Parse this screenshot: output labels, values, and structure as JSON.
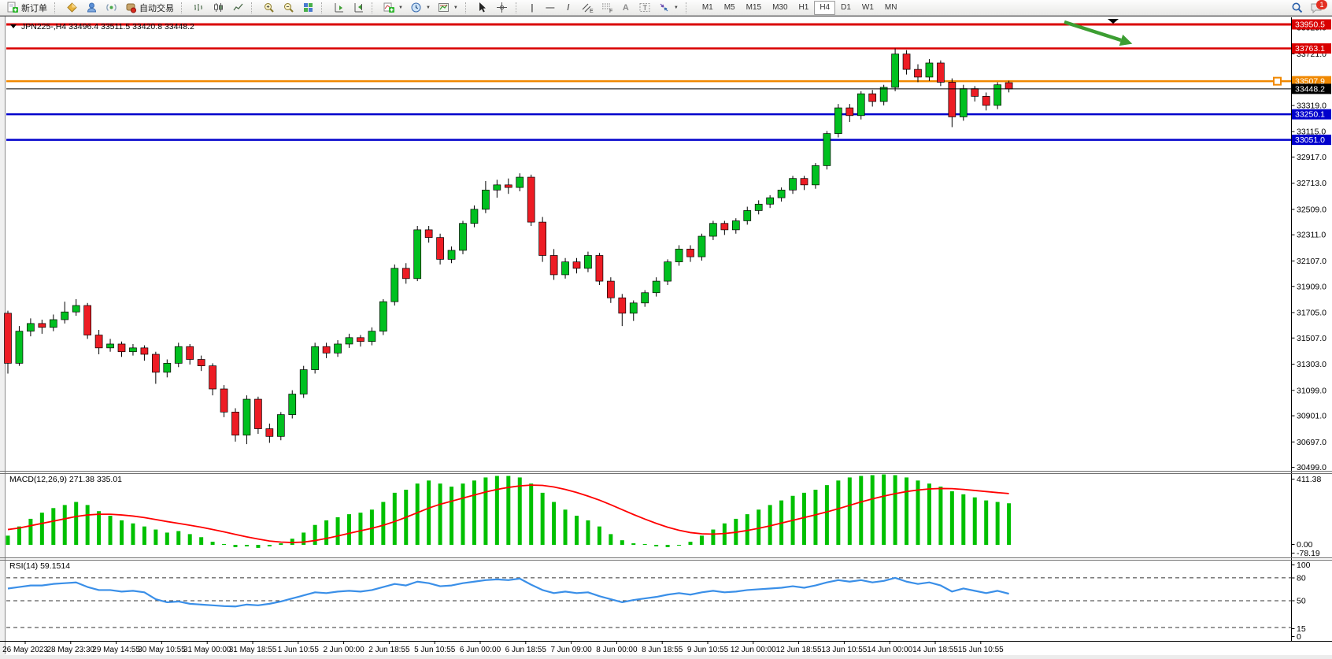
{
  "toolbar": {
    "new_order_label": "新订单",
    "autotrading_label": "自动交易",
    "timeframes": [
      "M1",
      "M5",
      "M15",
      "M30",
      "H1",
      "H4",
      "D1",
      "W1",
      "MN"
    ],
    "active_timeframe": "H4",
    "notification_count": "1",
    "icons": {
      "new-order-icon": "document-green-plus",
      "market-watch-icon": "gold-diamond",
      "data-window-icon": "blue-person",
      "navigator-icon": "signal-dot",
      "autotrading-icon": "chip-red-dot",
      "bar-chart-icon": "ohlc-bars",
      "candlestick-chart-icon": "candles",
      "line-chart-icon": "polyline",
      "zoom-in-icon": "magnifier-plus",
      "zoom-out-icon": "magnifier-minus",
      "tile-windows-icon": "colored-grid",
      "autoscroll-icon": "chart-arrow-right",
      "chart-shift-icon": "chart-shift-marker",
      "indicators-icon": "green-plus",
      "periods-icon": "clock",
      "templates-icon": "mini-chart",
      "cursor-icon": "pointer-arrow",
      "crosshair-icon": "crosshair",
      "vertical-line-icon": "vertical-bar",
      "horizontal-line-icon": "horizontal-bar",
      "trendline-icon": "diagonal-line",
      "equidistant-channel-icon": "double-slash-E",
      "fibonacci-icon": "dotted-grid-F",
      "text-icon": "letter-A",
      "text-label-icon": "boxed-T",
      "arrows-icon": "diagonal-arrows",
      "search-icon": "magnifier",
      "chat-icon": "speech-bubble"
    }
  },
  "chart": {
    "title": "JPN225-,H4",
    "ohlc_text": "33496.4 33511.5 33420.8 33448.2"
  },
  "chart_data": [
    {
      "type": "candlestick",
      "symbol": "JPN225-",
      "period": "H4",
      "last_bar": {
        "open": 33496.4,
        "high": 33511.5,
        "low": 33420.8,
        "close": 33448.2
      },
      "up_color": "#00c020",
      "down_color": "#ed1c24",
      "y_ticks": [
        33925.0,
        33721.0,
        33319.0,
        33115.0,
        32917.0,
        32713.0,
        32509.0,
        32311.0,
        32107.0,
        31909.0,
        31705.0,
        31507.0,
        31303.0,
        31099.0,
        30901.0,
        30697.0,
        30499.0
      ],
      "levels": [
        {
          "label": "33950.5",
          "price": 33950.5,
          "color": "#d90000",
          "width": 3,
          "marker": false
        },
        {
          "label": "33763.1",
          "price": 33763.1,
          "color": "#d90000",
          "width": 2.5,
          "marker": false
        },
        {
          "label": "33507.9",
          "price": 33507.9,
          "color": "#f08800",
          "width": 2.5,
          "marker": true
        },
        {
          "label": "33250.1",
          "price": 33250.1,
          "color": "#0000cc",
          "width": 2.5,
          "marker": false
        },
        {
          "label": "33051.0",
          "price": 33051.0,
          "color": "#0000cc",
          "width": 2.5,
          "marker": false
        }
      ],
      "current_price": {
        "label": "33448.2",
        "price": 33448.2,
        "color": "#000000"
      },
      "annotations": [
        {
          "type": "arrow",
          "color": "#3c9e32",
          "from": [
            1352,
            28
          ],
          "to": [
            1424,
            51
          ]
        },
        {
          "type": "shift-marker",
          "color": "#000000",
          "x": 1414,
          "y": 24
        }
      ],
      "x_labels": [
        "26 May 2023",
        "28 May 23:30",
        "29 May 14:55",
        "30 May 10:55",
        "31 May 00:00",
        "31 May 18:55",
        "1 Jun 10:55",
        "2 Jun 00:00",
        "2 Jun 18:55",
        "5 Jun 10:55",
        "6 Jun 00:00",
        "6 Jun 18:55",
        "7 Jun 09:00",
        "8 Jun 00:00",
        "8 Jun 18:55",
        "9 Jun 10:55",
        "12 Jun 00:00",
        "12 Jun 18:55",
        "13 Jun 10:55",
        "14 Jun 00:00",
        "14 Jun 18:55",
        "15 Jun 10:55"
      ],
      "candles": [
        [
          31700,
          31720,
          31230,
          31310
        ],
        [
          31310,
          31600,
          31290,
          31560
        ],
        [
          31560,
          31660,
          31520,
          31620
        ],
        [
          31620,
          31650,
          31540,
          31590
        ],
        [
          31590,
          31690,
          31560,
          31650
        ],
        [
          31650,
          31790,
          31620,
          31710
        ],
        [
          31710,
          31810,
          31680,
          31760
        ],
        [
          31760,
          31780,
          31500,
          31530
        ],
        [
          31530,
          31570,
          31380,
          31430
        ],
        [
          31430,
          31500,
          31400,
          31460
        ],
        [
          31460,
          31480,
          31360,
          31400
        ],
        [
          31400,
          31460,
          31370,
          31430
        ],
        [
          31430,
          31450,
          31330,
          31380
        ],
        [
          31380,
          31400,
          31150,
          31240
        ],
        [
          31240,
          31340,
          31200,
          31310
        ],
        [
          31310,
          31470,
          31280,
          31440
        ],
        [
          31440,
          31460,
          31300,
          31340
        ],
        [
          31340,
          31370,
          31250,
          31290
        ],
        [
          31290,
          31310,
          31060,
          31110
        ],
        [
          31110,
          31140,
          30890,
          30930
        ],
        [
          30930,
          30960,
          30700,
          30750
        ],
        [
          30750,
          31060,
          30680,
          31030
        ],
        [
          31030,
          31050,
          30760,
          30800
        ],
        [
          30800,
          30840,
          30690,
          30740
        ],
        [
          30740,
          30930,
          30710,
          30910
        ],
        [
          30910,
          31100,
          30880,
          31070
        ],
        [
          31070,
          31290,
          31040,
          31260
        ],
        [
          31260,
          31470,
          31230,
          31440
        ],
        [
          31440,
          31470,
          31350,
          31390
        ],
        [
          31390,
          31490,
          31360,
          31460
        ],
        [
          31460,
          31540,
          31430,
          31510
        ],
        [
          31510,
          31530,
          31440,
          31480
        ],
        [
          31480,
          31590,
          31450,
          31560
        ],
        [
          31560,
          31810,
          31530,
          31790
        ],
        [
          31790,
          32080,
          31760,
          32050
        ],
        [
          32050,
          32090,
          31930,
          31970
        ],
        [
          31970,
          32380,
          31950,
          32350
        ],
        [
          32350,
          32380,
          32250,
          32290
        ],
        [
          32290,
          32320,
          32080,
          32120
        ],
        [
          32120,
          32220,
          32090,
          32190
        ],
        [
          32190,
          32420,
          32160,
          32400
        ],
        [
          32400,
          32540,
          32370,
          32510
        ],
        [
          32510,
          32730,
          32480,
          32660
        ],
        [
          32660,
          32740,
          32600,
          32700
        ],
        [
          32700,
          32750,
          32630,
          32680
        ],
        [
          32680,
          32790,
          32650,
          32760
        ],
        [
          32760,
          32780,
          32380,
          32410
        ],
        [
          32410,
          32450,
          32100,
          32150
        ],
        [
          32150,
          32200,
          31960,
          32000
        ],
        [
          32000,
          32130,
          31970,
          32100
        ],
        [
          32100,
          32130,
          32010,
          32050
        ],
        [
          32050,
          32180,
          32020,
          32150
        ],
        [
          32150,
          32170,
          31920,
          31950
        ],
        [
          31950,
          31980,
          31780,
          31820
        ],
        [
          31820,
          31850,
          31600,
          31700
        ],
        [
          31700,
          31800,
          31640,
          31780
        ],
        [
          31780,
          31880,
          31750,
          31860
        ],
        [
          31860,
          31980,
          31830,
          31950
        ],
        [
          31950,
          32120,
          31920,
          32100
        ],
        [
          32100,
          32230,
          32070,
          32200
        ],
        [
          32200,
          32230,
          32100,
          32140
        ],
        [
          32140,
          32320,
          32110,
          32300
        ],
        [
          32300,
          32420,
          32270,
          32400
        ],
        [
          32400,
          32420,
          32310,
          32350
        ],
        [
          32350,
          32440,
          32320,
          32420
        ],
        [
          32420,
          32530,
          32390,
          32500
        ],
        [
          32500,
          32580,
          32470,
          32550
        ],
        [
          32550,
          32620,
          32520,
          32600
        ],
        [
          32600,
          32680,
          32570,
          32660
        ],
        [
          32660,
          32770,
          32630,
          32750
        ],
        [
          32750,
          32770,
          32660,
          32700
        ],
        [
          32700,
          32870,
          32670,
          32850
        ],
        [
          32850,
          33120,
          32820,
          33100
        ],
        [
          33100,
          33330,
          33070,
          33300
        ],
        [
          33300,
          33330,
          33190,
          33240
        ],
        [
          33240,
          33430,
          33210,
          33410
        ],
        [
          33410,
          33440,
          33310,
          33350
        ],
        [
          33350,
          33480,
          33320,
          33460
        ],
        [
          33460,
          33763,
          33430,
          33720
        ],
        [
          33720,
          33750,
          33560,
          33600
        ],
        [
          33600,
          33640,
          33500,
          33540
        ],
        [
          33540,
          33680,
          33510,
          33650
        ],
        [
          33650,
          33670,
          33470,
          33500
        ],
        [
          33500,
          33530,
          33150,
          33230
        ],
        [
          33230,
          33480,
          33200,
          33450
        ],
        [
          33450,
          33470,
          33350,
          33390
        ],
        [
          33390,
          33420,
          33280,
          33320
        ],
        [
          33320,
          33500,
          33290,
          33480
        ],
        [
          33496.4,
          33511.5,
          33420.8,
          33448.2
        ]
      ]
    },
    {
      "type": "bar",
      "name": "MACD(12,26,9)",
      "label": "MACD(12,26,9) 271.38 335.01",
      "current_main": 271.38,
      "current_signal": 335.01,
      "histogram_color": "#00c000",
      "signal_color": "#ff0000",
      "y_ticks": [
        "411.38",
        "0.00",
        "-78.19"
      ],
      "values": [
        60,
        120,
        170,
        210,
        240,
        260,
        280,
        260,
        220,
        190,
        160,
        140,
        120,
        100,
        80,
        90,
        70,
        50,
        20,
        5,
        -15,
        -10,
        -20,
        -10,
        10,
        40,
        80,
        130,
        160,
        180,
        200,
        210,
        230,
        280,
        340,
        360,
        400,
        420,
        400,
        380,
        400,
        420,
        440,
        450,
        450,
        440,
        400,
        340,
        280,
        230,
        190,
        160,
        120,
        70,
        30,
        10,
        5,
        -10,
        -15,
        -5,
        20,
        60,
        100,
        140,
        170,
        200,
        230,
        260,
        290,
        320,
        340,
        360,
        390,
        420,
        440,
        450,
        455,
        460,
        455,
        440,
        420,
        400,
        380,
        350,
        330,
        310,
        290,
        280,
        271.38
      ],
      "signal": [
        100,
        110,
        125,
        140,
        155,
        170,
        185,
        195,
        200,
        200,
        195,
        188,
        178,
        165,
        152,
        140,
        128,
        115,
        100,
        85,
        68,
        52,
        38,
        25,
        18,
        15,
        18,
        28,
        42,
        58,
        75,
        92,
        108,
        128,
        152,
        180,
        210,
        240,
        265,
        285,
        305,
        325,
        345,
        362,
        375,
        385,
        390,
        388,
        378,
        362,
        342,
        318,
        292,
        262,
        230,
        198,
        168,
        140,
        115,
        95,
        80,
        72,
        70,
        74,
        82,
        94,
        108,
        124,
        142,
        160,
        178,
        196,
        215,
        236,
        258,
        280,
        300,
        318,
        334,
        348,
        358,
        365,
        368,
        367,
        362,
        355,
        348,
        341,
        335.01
      ]
    },
    {
      "type": "line",
      "name": "RSI(14)",
      "label": "RSI(14) 59.1514",
      "current": 59.1514,
      "line_color": "#3a8fe8",
      "y_ticks": [
        "100",
        "80",
        "50",
        "15",
        "0"
      ],
      "level_lines": [
        80,
        50,
        15
      ],
      "values": [
        66,
        68,
        70,
        70,
        72,
        73,
        74,
        68,
        64,
        64,
        62,
        63,
        61,
        52,
        48,
        49,
        46,
        45,
        44,
        43,
        42.5,
        45,
        44,
        46,
        49,
        53,
        57,
        61,
        60,
        62,
        63,
        62,
        64,
        68,
        72,
        70,
        75,
        73,
        69,
        70,
        73,
        75,
        77,
        78,
        77,
        79,
        71,
        64,
        60,
        62,
        60,
        61,
        56,
        52,
        48,
        51,
        53,
        55,
        58,
        60,
        58,
        61,
        63,
        61,
        62,
        64,
        65,
        66,
        67,
        69,
        67,
        70,
        74,
        77,
        75,
        77,
        74,
        76,
        80,
        75,
        72,
        74,
        70,
        62,
        66,
        63,
        60,
        63,
        59.15
      ]
    }
  ]
}
